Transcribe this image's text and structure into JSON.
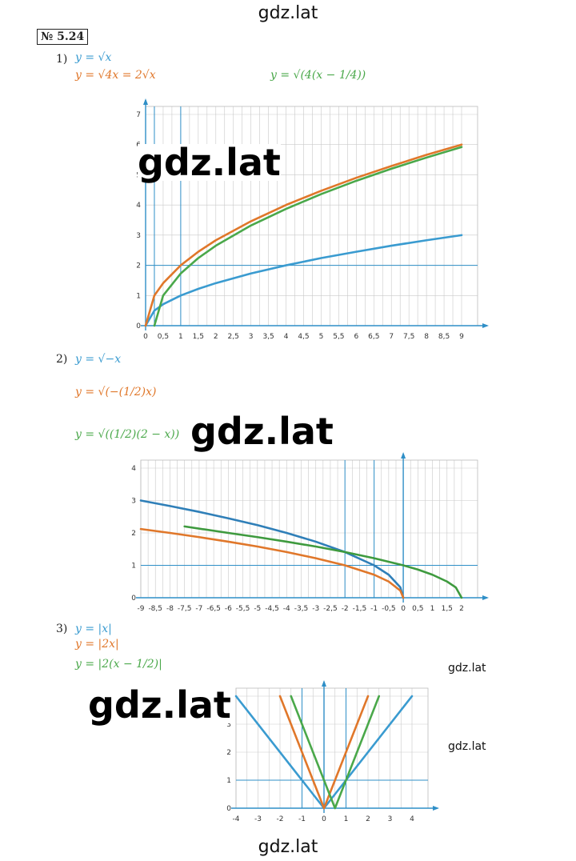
{
  "watermarks": {
    "top": "gdz.lat",
    "bottom": "gdz.lat",
    "big": "gdz.lat",
    "small": "gdz.lat"
  },
  "problem_number": "№ 5.24",
  "colors": {
    "blue": "#3a9bd0",
    "orange": "#e0772a",
    "green": "#4aa84a",
    "grid": "#c9c9c9",
    "axis": "#2f8fc7"
  },
  "parts": [
    {
      "label": "1)",
      "formulas": [
        "y = √x",
        "y = √4x = 2√x",
        "y = √(4(x − 1/4))"
      ]
    },
    {
      "label": "2)",
      "formulas": [
        "y = √−x",
        "y = √(−(1/2)x)",
        "y = √((1/2)(2 − x))"
      ]
    },
    {
      "label": "3)",
      "formulas": [
        "y = |x|",
        "y = |2x|",
        "y = |2(x − 1/2)|"
      ]
    }
  ],
  "chart_data": [
    {
      "type": "line",
      "x_ticks": [
        "0",
        "0,5",
        "1",
        "1,5",
        "2",
        "2,5",
        "3",
        "3,5",
        "4",
        "4,5",
        "5",
        "5,5",
        "6",
        "6,5",
        "7",
        "7,5",
        "8",
        "8,5",
        "9"
      ],
      "y_ticks": [
        "0",
        "1",
        "2",
        "3",
        "4",
        "5",
        "6",
        "7"
      ],
      "xlim": [
        0,
        9
      ],
      "ylim": [
        0,
        7
      ],
      "series": [
        {
          "name": "y = √x",
          "color": "#3a9bd0",
          "x": [
            0,
            0.25,
            0.5,
            1,
            1.5,
            2,
            3,
            4,
            5,
            6,
            7,
            8,
            9
          ],
          "y": [
            0,
            0.5,
            0.71,
            1,
            1.22,
            1.41,
            1.73,
            2,
            2.24,
            2.45,
            2.65,
            2.83,
            3
          ]
        },
        {
          "name": "y = √4x = 2√x",
          "color": "#e0772a",
          "x": [
            0,
            0.25,
            0.5,
            1,
            1.5,
            2,
            3,
            4,
            5,
            6,
            7,
            8,
            9
          ],
          "y": [
            0,
            1,
            1.41,
            2,
            2.45,
            2.83,
            3.46,
            4,
            4.47,
            4.9,
            5.29,
            5.66,
            6
          ]
        },
        {
          "name": "y = √(4(x − 1/4))",
          "color": "#4aa84a",
          "x": [
            0.25,
            0.5,
            1,
            1.5,
            2,
            3,
            4,
            5,
            6,
            7,
            8,
            9
          ],
          "y": [
            0,
            1,
            1.73,
            2.24,
            2.65,
            3.32,
            3.87,
            4.36,
            4.8,
            5.2,
            5.57,
            5.92
          ]
        }
      ]
    },
    {
      "type": "line",
      "x_ticks": [
        "-9",
        "-8,5",
        "-8",
        "-7,5",
        "-7",
        "-6,5",
        "-6",
        "-5,5",
        "-5",
        "-4,5",
        "-4",
        "-3,5",
        "-3",
        "-2,5",
        "-2",
        "-1,5",
        "-1",
        "-0,5",
        "0",
        "0,5",
        "1",
        "1,5",
        "2"
      ],
      "y_ticks": [
        "0",
        "1",
        "2",
        "3",
        "4"
      ],
      "xlim": [
        -9,
        2
      ],
      "ylim": [
        0,
        4
      ],
      "series": [
        {
          "name": "y = √−x",
          "color": "#2f7fb8",
          "x": [
            -9,
            -8,
            -7,
            -6,
            -5,
            -4,
            -3,
            -2,
            -1,
            -0.5,
            -0.1,
            0
          ],
          "y": [
            3,
            2.83,
            2.65,
            2.45,
            2.24,
            2,
            1.73,
            1.41,
            1,
            0.71,
            0.32,
            0
          ]
        },
        {
          "name": "y = √(−(1/2)x)",
          "color": "#e0772a",
          "x": [
            -9,
            -8,
            -7,
            -6,
            -5,
            -4,
            -3,
            -2,
            -1,
            -0.5,
            -0.1,
            0
          ],
          "y": [
            2.12,
            2,
            1.87,
            1.73,
            1.58,
            1.41,
            1.22,
            1,
            0.71,
            0.5,
            0.22,
            0
          ]
        },
        {
          "name": "y = √((1/2)(2 − x))",
          "color": "#3e9a3e",
          "x": [
            -7.5,
            -6,
            -5,
            -4,
            -3,
            -2,
            -1,
            0,
            0.5,
            1,
            1.5,
            1.8,
            2
          ],
          "y": [
            2.2,
            2,
            1.87,
            1.73,
            1.58,
            1.41,
            1.22,
            1,
            0.87,
            0.71,
            0.5,
            0.32,
            0
          ]
        }
      ]
    },
    {
      "type": "line",
      "x_ticks": [
        "-4",
        "-3",
        "-2",
        "-1",
        "0",
        "1",
        "2",
        "3",
        "4"
      ],
      "y_ticks": [
        "0",
        "1",
        "2",
        "3",
        "4"
      ],
      "xlim": [
        -4,
        4
      ],
      "ylim": [
        0,
        4
      ],
      "series": [
        {
          "name": "y = |x|",
          "color": "#3a9bd0",
          "x": [
            -4,
            0,
            4
          ],
          "y": [
            4,
            0,
            4
          ]
        },
        {
          "name": "y = |2x|",
          "color": "#e0772a",
          "x": [
            -2,
            0,
            2
          ],
          "y": [
            4,
            0,
            4
          ]
        },
        {
          "name": "y = |2(x − 1/2)|",
          "color": "#4aa84a",
          "x": [
            -1.5,
            0.5,
            2.5
          ],
          "y": [
            4,
            0,
            4
          ]
        }
      ]
    }
  ]
}
